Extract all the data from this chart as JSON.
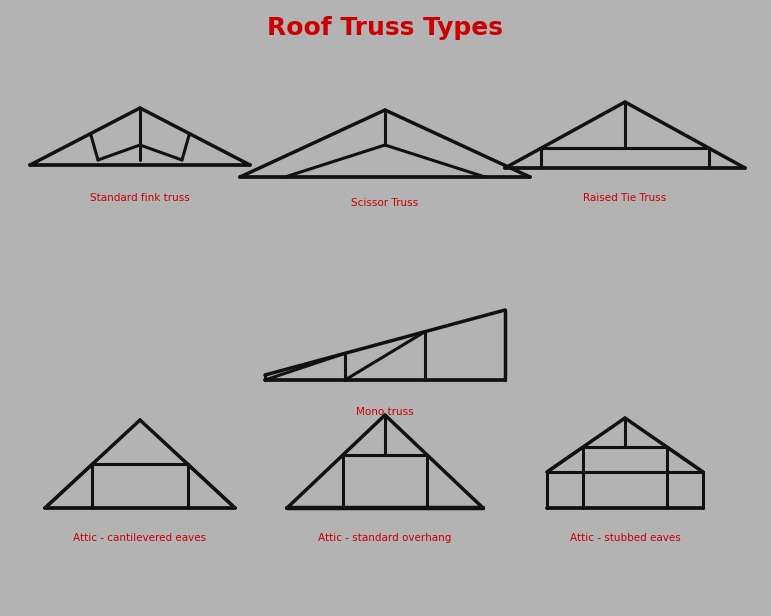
{
  "title": "Roof Truss Types",
  "title_color": "#cc0000",
  "title_fontsize": 18,
  "background_color": "#b3b3b3",
  "line_color": "#111111",
  "line_width": 2.2,
  "label_color": "#cc0000",
  "label_fontsize": 7.5,
  "labels": [
    "Standard fink truss",
    "Scissor Truss",
    "Raised Tie Truss",
    "Mono truss",
    "Attic - cantilevered eaves",
    "Attic - standard overhang",
    "Attic - stubbed eaves"
  ],
  "figsize": [
    7.71,
    6.16
  ],
  "dpi": 100
}
